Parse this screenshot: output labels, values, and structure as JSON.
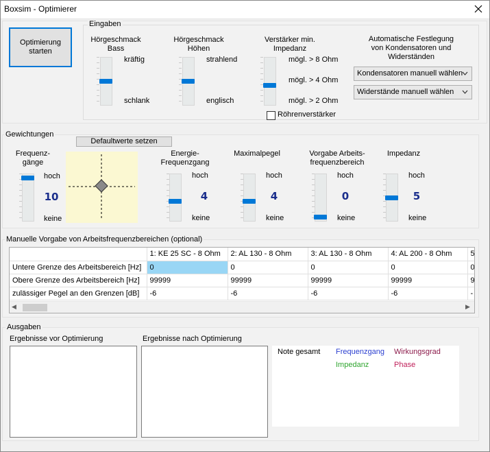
{
  "window": {
    "title": "Boxsim - Optimierer",
    "close_symbol": "✕"
  },
  "colors": {
    "accent": "#0078d7",
    "value_text": "#1a2e8c",
    "frequenzgang": "#2b3fd0",
    "wirkungsgrad": "#8b1a4a",
    "impedanz": "#2fa52f",
    "phase": "#c0205a"
  },
  "start_button": {
    "line1": "Optimierung",
    "line2": "starten"
  },
  "eingaben": {
    "legend": "Eingaben",
    "bass": {
      "title1": "Hörgeschmack",
      "title2": "Bass",
      "top": "kräftig",
      "bottom": "schlank",
      "level": 0.5
    },
    "hoehen": {
      "title1": "Hörgeschmack",
      "title2": "Höhen",
      "top": "strahlend",
      "bottom": "englisch",
      "level": 0.5
    },
    "verstaerker": {
      "title1": "Verstärker min.",
      "title2": "Impedanz",
      "opt1": "mögl. > 8 Ohm",
      "opt2": "mögl. > 4 Ohm",
      "opt3": "mögl. > 2 Ohm",
      "level": 0.4
    },
    "roehren": {
      "label": "Röhrenverstärker",
      "checked": false
    },
    "auto": {
      "title1": "Automatische Festlegung",
      "title2": "von Kondensatoren und",
      "title3": "Widerständen",
      "kondensatoren": "Kondensatoren manuell wählen",
      "widerstaende": "Widerstände manuell wählen"
    }
  },
  "gewichtungen": {
    "legend": "Gewichtungen",
    "default_button": "Defaultwerte setzen",
    "freq": {
      "title1": "Frequenz-",
      "title2": "gänge",
      "top": "hoch",
      "bottom": "keine",
      "value": "10",
      "level": 1.0
    },
    "energie": {
      "title1": "Energie-",
      "title2": "Frequenzgang",
      "top": "hoch",
      "bottom": "keine",
      "value": "4",
      "level": 0.4
    },
    "maximal": {
      "title1": "Maximalpegel",
      "top": "hoch",
      "bottom": "keine",
      "value": "4",
      "level": 0.4
    },
    "vorgabe": {
      "title1": "Vorgabe Arbeits-",
      "title2": "frequenzbereich",
      "top": "hoch",
      "bottom": "keine",
      "value": "0",
      "level": 0.0
    },
    "impedanz": {
      "title1": "Impedanz",
      "top": "hoch",
      "bottom": "keine",
      "value": "5",
      "level": 0.5
    }
  },
  "manuelle": {
    "legend": "Manuelle Vorgabe von Arbeitsfrequenzbereichen (optional)",
    "columns": [
      "1: KE 25 SC - 8 Ohm",
      "2: AL 130 - 8 Ohm",
      "3: AL 130 - 8 Ohm",
      "4: AL 200 - 8 Ohm",
      "5"
    ],
    "rows": [
      {
        "label": "Untere Grenze des Arbeitsbereich [Hz]",
        "values": [
          "0",
          "0",
          "0",
          "0",
          "0"
        ]
      },
      {
        "label": "Obere Grenze des Arbeitsbereich [Hz]",
        "values": [
          "99999",
          "99999",
          "99999",
          "99999",
          "9"
        ]
      },
      {
        "label": "zulässiger Pegel an den Grenzen [dB]",
        "values": [
          "-6",
          "-6",
          "-6",
          "-6",
          "-"
        ]
      }
    ],
    "scroll_left": "◀",
    "scroll_right": "▶"
  },
  "ausgaben": {
    "legend": "Ausgaben",
    "vor_label": "Ergebnisse vor Optimierung",
    "nach_label": "Ergebnisse nach Optimierung",
    "note_gesamt": "Note gesamt",
    "frequenzgang": "Frequenzgang",
    "wirkungsgrad": "Wirkungsgrad",
    "impedanz": "Impedanz",
    "phase": "Phase"
  }
}
